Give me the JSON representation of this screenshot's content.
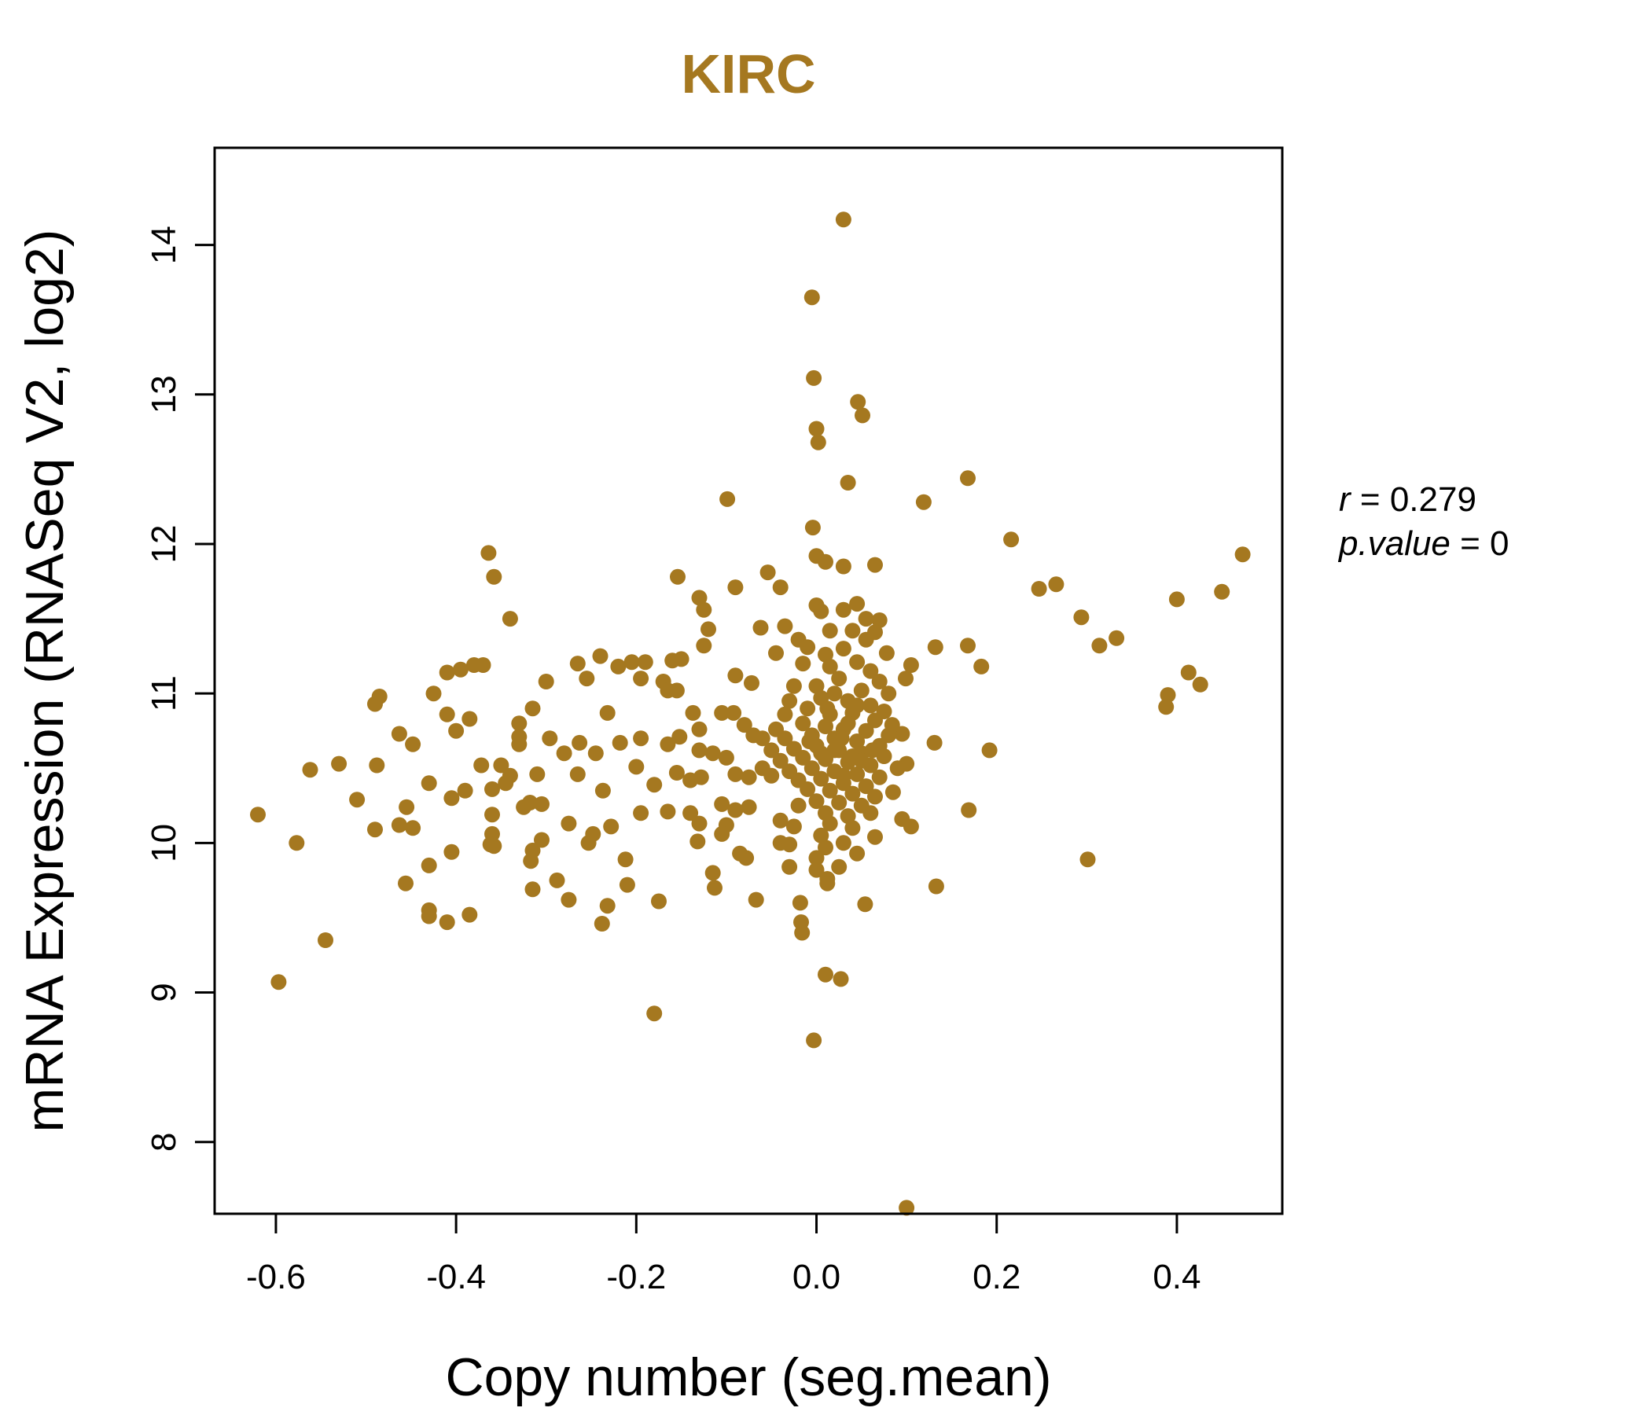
{
  "colors": {
    "accent": "#A57820"
  },
  "chart_data": {
    "type": "scatter",
    "title": "KIRC",
    "xlabel": "Copy number (seg.mean)",
    "ylabel": "mRNA Expression (RNASeq V2, log2)",
    "xlim": [
      -0.668,
      0.517
    ],
    "ylim": [
      7.52,
      14.65
    ],
    "xticks": [
      -0.6,
      -0.4,
      -0.2,
      0.0,
      0.2,
      0.4
    ],
    "xtick_labels": [
      "-0.6",
      "-0.4",
      "-0.2",
      "0.0",
      "0.2",
      "0.4"
    ],
    "yticks": [
      8,
      9,
      10,
      11,
      12,
      13,
      14
    ],
    "ytick_labels": [
      "8",
      "9",
      "10",
      "11",
      "12",
      "13",
      "14"
    ],
    "stats": {
      "r_label": "r",
      "r_value": "0.279",
      "p_label": "p.value",
      "p_value": "0"
    },
    "points": [
      [
        0.03,
        14.17
      ],
      [
        -0.005,
        13.65
      ],
      [
        -0.003,
        13.11
      ],
      [
        0.046,
        12.95
      ],
      [
        0.051,
        12.86
      ],
      [
        0.0,
        12.77
      ],
      [
        0.002,
        12.68
      ],
      [
        0.035,
        12.41
      ],
      [
        0.168,
        12.44
      ],
      [
        0.119,
        12.28
      ],
      [
        -0.099,
        12.3
      ],
      [
        -0.004,
        12.11
      ],
      [
        0.216,
        12.03
      ],
      [
        -0.364,
        11.94
      ],
      [
        0.473,
        11.93
      ],
      [
        -0.358,
        11.78
      ],
      [
        -0.154,
        11.78
      ],
      [
        -0.054,
        11.81
      ],
      [
        0.0,
        11.92
      ],
      [
        0.01,
        11.88
      ],
      [
        0.03,
        11.85
      ],
      [
        0.065,
        11.86
      ],
      [
        -0.09,
        11.71
      ],
      [
        -0.04,
        11.71
      ],
      [
        0.247,
        11.7
      ],
      [
        0.266,
        11.73
      ],
      [
        0.45,
        11.68
      ],
      [
        0.4,
        11.63
      ],
      [
        -0.13,
        11.64
      ],
      [
        -0.125,
        11.56
      ],
      [
        -0.34,
        11.5
      ],
      [
        -0.12,
        11.43
      ],
      [
        0.294,
        11.51
      ],
      [
        0.333,
        11.37
      ],
      [
        0.314,
        11.32
      ],
      [
        0.168,
        11.32
      ],
      [
        0.132,
        11.31
      ],
      [
        0.183,
        11.18
      ],
      [
        -0.38,
        11.19
      ],
      [
        -0.37,
        11.19
      ],
      [
        -0.41,
        11.14
      ],
      [
        -0.395,
        11.16
      ],
      [
        -0.265,
        11.2
      ],
      [
        -0.24,
        11.25
      ],
      [
        -0.205,
        11.21
      ],
      [
        -0.22,
        11.18
      ],
      [
        -0.19,
        11.21
      ],
      [
        -0.16,
        11.22
      ],
      [
        -0.125,
        11.32
      ],
      [
        -0.15,
        11.23
      ],
      [
        -0.3,
        11.08
      ],
      [
        -0.255,
        11.1
      ],
      [
        -0.195,
        11.1
      ],
      [
        -0.17,
        11.08
      ],
      [
        -0.165,
        11.02
      ],
      [
        -0.155,
        11.02
      ],
      [
        -0.09,
        11.12
      ],
      [
        -0.072,
        11.07
      ],
      [
        -0.062,
        11.44
      ],
      [
        -0.045,
        11.27
      ],
      [
        0.413,
        11.14
      ],
      [
        0.426,
        11.06
      ],
      [
        0.39,
        10.99
      ],
      [
        0.388,
        10.91
      ],
      [
        0.099,
        11.1
      ],
      [
        0.105,
        11.19
      ],
      [
        -0.425,
        11.0
      ],
      [
        -0.485,
        10.98
      ],
      [
        -0.49,
        10.93
      ],
      [
        -0.41,
        10.86
      ],
      [
        -0.385,
        10.83
      ],
      [
        -0.315,
        10.9
      ],
      [
        -0.33,
        10.8
      ],
      [
        -0.232,
        10.87
      ],
      [
        -0.137,
        10.87
      ],
      [
        -0.105,
        10.87
      ],
      [
        -0.092,
        10.87
      ],
      [
        -0.08,
        10.79
      ],
      [
        -0.07,
        10.72
      ],
      [
        -0.13,
        10.76
      ],
      [
        -0.152,
        10.71
      ],
      [
        -0.4,
        10.75
      ],
      [
        -0.463,
        10.73
      ],
      [
        -0.448,
        10.66
      ],
      [
        -0.33,
        10.71
      ],
      [
        -0.296,
        10.7
      ],
      [
        -0.263,
        10.67
      ],
      [
        -0.218,
        10.67
      ],
      [
        -0.195,
        10.7
      ],
      [
        -0.165,
        10.66
      ],
      [
        -0.33,
        10.66
      ],
      [
        -0.28,
        10.6
      ],
      [
        -0.245,
        10.6
      ],
      [
        -0.13,
        10.62
      ],
      [
        -0.115,
        10.6
      ],
      [
        -0.1,
        10.57
      ],
      [
        -0.09,
        10.46
      ],
      [
        -0.075,
        10.44
      ],
      [
        -0.06,
        10.5
      ],
      [
        -0.05,
        10.45
      ],
      [
        0.095,
        10.73
      ],
      [
        0.084,
        10.79
      ],
      [
        0.131,
        10.67
      ],
      [
        0.192,
        10.62
      ],
      [
        0.1,
        10.53
      ],
      [
        0.09,
        10.5
      ],
      [
        0.085,
        10.34
      ],
      [
        -0.53,
        10.53
      ],
      [
        -0.562,
        10.49
      ],
      [
        -0.488,
        10.52
      ],
      [
        -0.372,
        10.52
      ],
      [
        -0.35,
        10.52
      ],
      [
        -0.34,
        10.45
      ],
      [
        -0.31,
        10.46
      ],
      [
        -0.265,
        10.46
      ],
      [
        -0.2,
        10.51
      ],
      [
        -0.18,
        10.39
      ],
      [
        -0.155,
        10.47
      ],
      [
        -0.14,
        10.42
      ],
      [
        -0.128,
        10.44
      ],
      [
        -0.43,
        10.4
      ],
      [
        -0.39,
        10.35
      ],
      [
        -0.36,
        10.36
      ],
      [
        -0.345,
        10.4
      ],
      [
        -0.237,
        10.35
      ],
      [
        -0.305,
        10.26
      ],
      [
        -0.318,
        10.27
      ],
      [
        -0.325,
        10.24
      ],
      [
        -0.405,
        10.3
      ],
      [
        -0.51,
        10.29
      ],
      [
        -0.455,
        10.24
      ],
      [
        -0.62,
        10.19
      ],
      [
        -0.49,
        10.09
      ],
      [
        -0.463,
        10.12
      ],
      [
        -0.448,
        10.1
      ],
      [
        -0.36,
        10.19
      ],
      [
        -0.36,
        10.06
      ],
      [
        -0.275,
        10.13
      ],
      [
        -0.248,
        10.06
      ],
      [
        -0.228,
        10.11
      ],
      [
        -0.195,
        10.2
      ],
      [
        -0.165,
        10.21
      ],
      [
        -0.14,
        10.2
      ],
      [
        -0.13,
        10.13
      ],
      [
        -0.1,
        10.12
      ],
      [
        -0.105,
        10.26
      ],
      [
        -0.09,
        10.22
      ],
      [
        -0.075,
        10.24
      ],
      [
        -0.04,
        10.15
      ],
      [
        -0.025,
        10.11
      ],
      [
        -0.577,
        10.0
      ],
      [
        -0.362,
        9.99
      ],
      [
        -0.358,
        9.98
      ],
      [
        -0.315,
        9.95
      ],
      [
        -0.317,
        9.88
      ],
      [
        -0.305,
        10.02
      ],
      [
        -0.253,
        10.0
      ],
      [
        -0.212,
        9.89
      ],
      [
        -0.132,
        10.01
      ],
      [
        -0.105,
        10.06
      ],
      [
        -0.085,
        9.93
      ],
      [
        -0.078,
        9.9
      ],
      [
        -0.04,
        10.0
      ],
      [
        -0.03,
        9.99
      ],
      [
        -0.03,
        9.84
      ],
      [
        0.0,
        9.9
      ],
      [
        0.01,
        9.97
      ],
      [
        0.045,
        9.93
      ],
      [
        0.065,
        10.04
      ],
      [
        0.095,
        10.16
      ],
      [
        0.105,
        10.11
      ],
      [
        0.301,
        9.89
      ],
      [
        -0.405,
        9.94
      ],
      [
        -0.43,
        9.85
      ],
      [
        -0.456,
        9.73
      ],
      [
        -0.315,
        9.69
      ],
      [
        -0.288,
        9.75
      ],
      [
        -0.275,
        9.62
      ],
      [
        -0.21,
        9.72
      ],
      [
        -0.175,
        9.61
      ],
      [
        -0.115,
        9.8
      ],
      [
        -0.113,
        9.7
      ],
      [
        -0.067,
        9.62
      ],
      [
        -0.018,
        9.6
      ],
      [
        0.0,
        9.82
      ],
      [
        0.012,
        9.76
      ],
      [
        0.012,
        9.73
      ],
      [
        0.025,
        9.84
      ],
      [
        0.054,
        9.59
      ],
      [
        0.133,
        9.71
      ],
      [
        0.169,
        10.22
      ],
      [
        -0.43,
        9.55
      ],
      [
        -0.43,
        9.51
      ],
      [
        -0.385,
        9.52
      ],
      [
        -0.41,
        9.47
      ],
      [
        -0.238,
        9.46
      ],
      [
        -0.232,
        9.58
      ],
      [
        -0.017,
        9.47
      ],
      [
        -0.016,
        9.4
      ],
      [
        -0.545,
        9.35
      ],
      [
        -0.597,
        9.07
      ],
      [
        0.01,
        9.12
      ],
      [
        0.027,
        9.09
      ],
      [
        -0.18,
        8.86
      ],
      [
        -0.003,
        8.68
      ],
      [
        0.1,
        7.56
      ],
      [
        0.0,
        11.59
      ],
      [
        0.005,
        11.55
      ],
      [
        0.03,
        11.56
      ],
      [
        0.045,
        11.6
      ],
      [
        0.055,
        11.5
      ],
      [
        0.07,
        11.49
      ],
      [
        -0.035,
        11.45
      ],
      [
        -0.02,
        11.36
      ],
      [
        0.015,
        11.42
      ],
      [
        0.04,
        11.42
      ],
      [
        0.065,
        11.41
      ],
      [
        0.078,
        11.27
      ],
      [
        0.055,
        11.36
      ],
      [
        -0.01,
        11.31
      ],
      [
        0.01,
        11.26
      ],
      [
        0.03,
        11.3
      ],
      [
        -0.015,
        11.2
      ],
      [
        0.015,
        11.18
      ],
      [
        0.045,
        11.21
      ],
      [
        0.06,
        11.15
      ],
      [
        0.07,
        11.08
      ],
      [
        0.08,
        11.0
      ],
      [
        -0.025,
        11.05
      ],
      [
        0.0,
        11.05
      ],
      [
        0.025,
        11.1
      ],
      [
        0.05,
        11.02
      ],
      [
        -0.03,
        10.95
      ],
      [
        0.005,
        10.97
      ],
      [
        0.035,
        10.95
      ],
      [
        0.06,
        10.92
      ],
      [
        0.075,
        10.88
      ],
      [
        -0.035,
        10.86
      ],
      [
        -0.01,
        10.9
      ],
      [
        0.015,
        10.86
      ],
      [
        0.04,
        10.87
      ],
      [
        0.065,
        10.82
      ],
      [
        -0.045,
        10.76
      ],
      [
        -0.015,
        10.8
      ],
      [
        0.01,
        10.78
      ],
      [
        0.03,
        10.76
      ],
      [
        0.055,
        10.75
      ],
      [
        0.08,
        10.72
      ],
      [
        -0.06,
        10.7
      ],
      [
        -0.035,
        10.7
      ],
      [
        -0.005,
        10.72
      ],
      [
        0.02,
        10.7
      ],
      [
        0.045,
        10.68
      ],
      [
        0.07,
        10.65
      ],
      [
        -0.05,
        10.62
      ],
      [
        -0.025,
        10.63
      ],
      [
        0.0,
        10.65
      ],
      [
        0.025,
        10.62
      ],
      [
        0.05,
        10.6
      ],
      [
        0.075,
        10.58
      ],
      [
        -0.04,
        10.55
      ],
      [
        -0.015,
        10.57
      ],
      [
        0.01,
        10.56
      ],
      [
        0.035,
        10.54
      ],
      [
        0.06,
        10.52
      ],
      [
        -0.03,
        10.48
      ],
      [
        -0.005,
        10.5
      ],
      [
        0.02,
        10.48
      ],
      [
        0.045,
        10.46
      ],
      [
        0.07,
        10.44
      ],
      [
        -0.02,
        10.42
      ],
      [
        0.005,
        10.43
      ],
      [
        0.03,
        10.4
      ],
      [
        0.055,
        10.38
      ],
      [
        -0.01,
        10.36
      ],
      [
        0.015,
        10.35
      ],
      [
        0.04,
        10.33
      ],
      [
        0.065,
        10.31
      ],
      [
        0.0,
        10.28
      ],
      [
        0.025,
        10.27
      ],
      [
        0.05,
        10.25
      ],
      [
        -0.02,
        10.25
      ],
      [
        0.01,
        10.2
      ],
      [
        0.035,
        10.18
      ],
      [
        0.06,
        10.2
      ],
      [
        0.015,
        10.13
      ],
      [
        0.04,
        10.1
      ],
      [
        0.005,
        10.05
      ],
      [
        0.03,
        10.0
      ],
      [
        0.045,
        10.92
      ],
      [
        0.02,
        11.0
      ],
      [
        0.035,
        10.8
      ],
      [
        0.005,
        10.6
      ],
      [
        0.03,
        10.45
      ],
      [
        0.02,
        10.62
      ],
      [
        0.04,
        10.58
      ],
      [
        0.012,
        10.9
      ],
      [
        0.028,
        10.7
      ],
      [
        0.05,
        10.55
      ],
      [
        -0.008,
        10.68
      ],
      [
        0.062,
        10.62
      ]
    ]
  }
}
